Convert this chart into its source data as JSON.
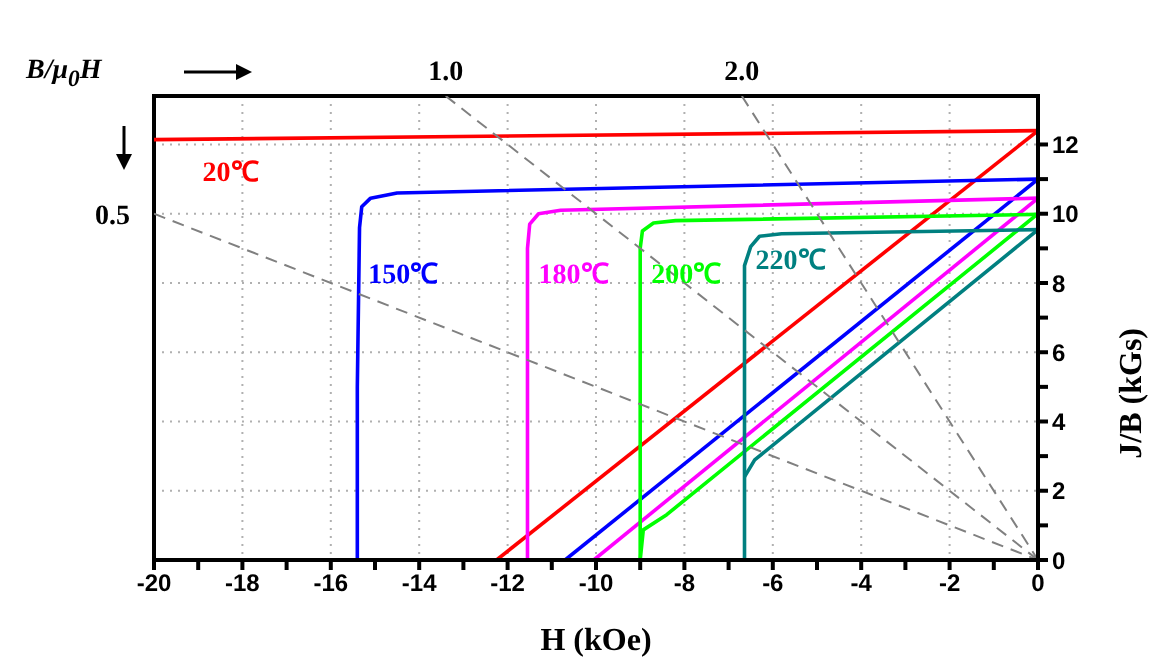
{
  "chart_data": {
    "type": "line",
    "xlabel": "H  (kOe)",
    "ylabel": "J/B  (kGs)",
    "marker": "none",
    "grid": true,
    "xlim": [
      -20,
      0
    ],
    "ylim": [
      0,
      13.4
    ],
    "xticks": [
      -20,
      {
        "value": -19,
        "label": null
      },
      -18,
      {
        "value": -17,
        "label": null
      },
      -16,
      {
        "value": -15,
        "label": null
      },
      -14,
      {
        "value": -13,
        "label": null
      },
      -12,
      {
        "value": -11,
        "label": null
      },
      -10,
      {
        "value": -9,
        "label": null
      },
      -8,
      {
        "value": -7,
        "label": null
      },
      -6,
      {
        "value": -5,
        "label": null
      },
      -4,
      {
        "value": -3,
        "label": null
      },
      -2,
      {
        "value": -1,
        "label": null
      },
      0
    ],
    "yticks": [
      0,
      {
        "value": 1,
        "label": null
      },
      2,
      {
        "value": 3,
        "label": null
      },
      4,
      {
        "value": 5,
        "label": null
      },
      6,
      {
        "value": 7,
        "label": null
      },
      8,
      {
        "value": 9,
        "label": null
      },
      10,
      {
        "value": 11,
        "label": null
      },
      12
    ],
    "series": [
      {
        "name": "20℃",
        "color": "#ff0000",
        "x": [
          -20,
          0
        ],
        "values": [
          12.14,
          12.4
        ]
      },
      {
        "color": "#ff0000",
        "x": [
          -12.25,
          0
        ],
        "values": [
          0,
          12.4
        ]
      },
      {
        "name": "150℃",
        "color": "#0000ff",
        "x": [
          -15.4,
          -15.4,
          -15.35,
          -15.3,
          -15.1,
          -14.5,
          0
        ],
        "values": [
          0,
          5,
          9.6,
          10.2,
          10.45,
          10.6,
          11.0
        ]
      },
      {
        "color": "#0000ff",
        "x": [
          -10.7,
          0
        ],
        "values": [
          0,
          11.0
        ]
      },
      {
        "name": "180℃",
        "color": "#ff00ff",
        "x": [
          -11.55,
          -11.55,
          -11.5,
          -11.3,
          -10.8,
          0
        ],
        "values": [
          0,
          9,
          9.7,
          10.0,
          10.1,
          10.45
        ]
      },
      {
        "color": "#ff00ff",
        "x": [
          -10.05,
          0
        ],
        "values": [
          0,
          10.45
        ]
      },
      {
        "name": "200℃",
        "color": "#00ff00",
        "x": [
          -9.0,
          -9.0,
          -8.95,
          -8.7,
          -8.2,
          0
        ],
        "values": [
          0,
          9.0,
          9.5,
          9.73,
          9.8,
          9.98
        ]
      },
      {
        "color": "#00ff00",
        "x": [
          -9.0,
          -8.93,
          -8.4,
          0
        ],
        "values": [
          0,
          0.87,
          1.31,
          10.0
        ]
      },
      {
        "name": "220℃",
        "color": "#008080",
        "x": [
          -6.64,
          -6.64,
          -6.5,
          -6.3,
          -5.8,
          0
        ],
        "values": [
          0,
          8.5,
          9.05,
          9.35,
          9.42,
          9.54
        ]
      },
      {
        "color": "#008080",
        "x": [
          -6.64,
          -6.41,
          0
        ],
        "values": [
          2.4,
          2.89,
          9.54
        ]
      },
      {
        "color": "#808080",
        "line_style": "dashed",
        "x": [
          -20,
          0
        ],
        "values": [
          10,
          0
        ]
      },
      {
        "color": "#808080",
        "line_style": "dashed",
        "x": [
          -13.4,
          0
        ],
        "values": [
          13.4,
          0
        ]
      },
      {
        "color": "#808080",
        "line_style": "dashed",
        "x": [
          -6.7,
          0
        ],
        "values": [
          13.4,
          0
        ]
      }
    ],
    "annotations": [
      "B/μ$_{0}$H",
      {
        "text": "0.5",
        "x": -20,
        "y": 10
      },
      {
        "text": "1.0",
        "x": -13.4,
        "y": 13.4
      },
      {
        "text": "2.0",
        "x": -6.7,
        "y": 13.4
      }
    ]
  }
}
